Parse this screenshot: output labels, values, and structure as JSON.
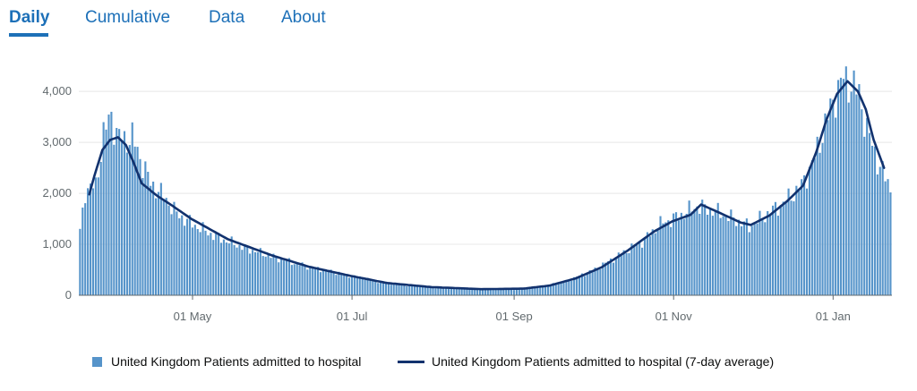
{
  "tabs": [
    {
      "label": "Daily",
      "active": true
    },
    {
      "label": "Cumulative",
      "active": false
    },
    {
      "label": "Data",
      "active": false
    },
    {
      "label": "About",
      "active": false
    }
  ],
  "colors": {
    "accent": "#1d70b8",
    "bar": "#5694ca",
    "line": "#12326e",
    "grid": "#e8e8e8"
  },
  "chart_data": {
    "type": "bar",
    "title": "",
    "xlabel": "",
    "ylabel": "",
    "ylim": [
      0,
      4600
    ],
    "yticks": [
      0,
      1000,
      2000,
      3000,
      4000
    ],
    "ytick_labels": [
      "0",
      "1,000",
      "2,000",
      "3,000",
      "4,000"
    ],
    "xlim": [
      "2020-03-19",
      "2021-01-23"
    ],
    "xticks": [
      "2020-05-01",
      "2020-07-01",
      "2020-09-01",
      "2020-11-01",
      "2021-01-01"
    ],
    "xtick_labels": [
      "01 May",
      "01 Jul",
      "01 Sep",
      "01 Nov",
      "01 Jan"
    ],
    "legend_position": "bottom",
    "grid": true,
    "series": [
      {
        "name": "United Kingdom Patients admitted to hospital",
        "kind": "bar"
      },
      {
        "name": "United Kingdom Patients admitted to hospital (7-day average)",
        "kind": "line"
      }
    ],
    "bar_anchors": [
      [
        "2020-03-19",
        1250
      ],
      [
        "2020-03-21",
        2050
      ],
      [
        "2020-03-25",
        2150
      ],
      [
        "2020-03-28",
        3150
      ],
      [
        "2020-03-31",
        3550
      ],
      [
        "2020-04-02",
        3150
      ],
      [
        "2020-04-05",
        3050
      ],
      [
        "2020-04-08",
        3100
      ],
      [
        "2020-04-11",
        2700
      ],
      [
        "2020-04-15",
        2200
      ],
      [
        "2020-04-20",
        1950
      ],
      [
        "2020-04-25",
        1600
      ],
      [
        "2020-05-01",
        1400
      ],
      [
        "2020-05-10",
        1150
      ],
      [
        "2020-05-20",
        950
      ],
      [
        "2020-06-01",
        750
      ],
      [
        "2020-06-15",
        550
      ],
      [
        "2020-07-01",
        380
      ],
      [
        "2020-07-15",
        230
      ],
      [
        "2020-08-01",
        150
      ],
      [
        "2020-08-15",
        120
      ],
      [
        "2020-09-01",
        115
      ],
      [
        "2020-09-10",
        160
      ],
      [
        "2020-09-20",
        260
      ],
      [
        "2020-10-01",
        480
      ],
      [
        "2020-10-10",
        750
      ],
      [
        "2020-10-20",
        1050
      ],
      [
        "2020-10-27",
        1400
      ],
      [
        "2020-11-03",
        1550
      ],
      [
        "2020-11-10",
        1750
      ],
      [
        "2020-11-17",
        1650
      ],
      [
        "2020-11-24",
        1500
      ],
      [
        "2020-11-30",
        1350
      ],
      [
        "2020-12-07",
        1600
      ],
      [
        "2020-12-14",
        1850
      ],
      [
        "2020-12-20",
        2150
      ],
      [
        "2020-12-25",
        2700
      ],
      [
        "2020-12-29",
        3350
      ],
      [
        "2021-01-02",
        3950
      ],
      [
        "2021-01-05",
        4250
      ],
      [
        "2021-01-08",
        4150
      ],
      [
        "2021-01-11",
        3950
      ],
      [
        "2021-01-14",
        3250
      ],
      [
        "2021-01-18",
        2650
      ],
      [
        "2021-01-21",
        2300
      ],
      [
        "2021-01-23",
        2100
      ]
    ],
    "avg_anchors": [
      [
        "2020-03-23",
        1980
      ],
      [
        "2020-03-25",
        2350
      ],
      [
        "2020-03-28",
        2850
      ],
      [
        "2020-03-31",
        3050
      ],
      [
        "2020-04-03",
        3100
      ],
      [
        "2020-04-06",
        2950
      ],
      [
        "2020-04-09",
        2600
      ],
      [
        "2020-04-12",
        2200
      ],
      [
        "2020-04-18",
        1950
      ],
      [
        "2020-04-24",
        1750
      ],
      [
        "2020-05-01",
        1500
      ],
      [
        "2020-05-15",
        1100
      ],
      [
        "2020-06-01",
        780
      ],
      [
        "2020-06-15",
        560
      ],
      [
        "2020-07-01",
        380
      ],
      [
        "2020-07-15",
        240
      ],
      [
        "2020-08-01",
        160
      ],
      [
        "2020-08-20",
        120
      ],
      [
        "2020-09-05",
        130
      ],
      [
        "2020-09-15",
        190
      ],
      [
        "2020-09-25",
        330
      ],
      [
        "2020-10-05",
        550
      ],
      [
        "2020-10-15",
        880
      ],
      [
        "2020-10-25",
        1250
      ],
      [
        "2020-11-01",
        1450
      ],
      [
        "2020-11-08",
        1580
      ],
      [
        "2020-11-12",
        1780
      ],
      [
        "2020-11-19",
        1620
      ],
      [
        "2020-11-27",
        1430
      ],
      [
        "2020-12-01",
        1380
      ],
      [
        "2020-12-08",
        1560
      ],
      [
        "2020-12-15",
        1850
      ],
      [
        "2020-12-21",
        2150
      ],
      [
        "2020-12-26",
        2800
      ],
      [
        "2020-12-30",
        3450
      ],
      [
        "2021-01-03",
        3950
      ],
      [
        "2021-01-07",
        4200
      ],
      [
        "2021-01-11",
        4000
      ],
      [
        "2021-01-14",
        3650
      ],
      [
        "2021-01-17",
        3050
      ],
      [
        "2021-01-21",
        2500
      ]
    ]
  }
}
